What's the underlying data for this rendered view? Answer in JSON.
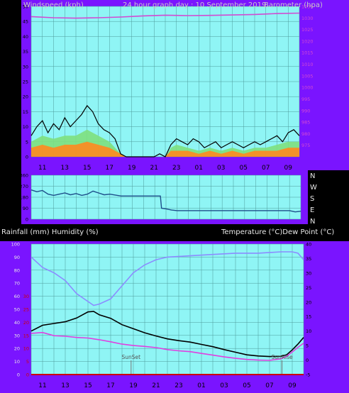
{
  "colors": {
    "panel": "#7a14ff",
    "plot": "#8ff5f5",
    "grid": "#4d9a9a",
    "axis_text": "#000000",
    "pressure": "#d24ad2",
    "gust": "#000000",
    "wind_mid": "#7ee07e",
    "wind_avg": "#ff8a1e",
    "direction": "#1e4e8a",
    "temperature": "#000000",
    "dew_point": "#e040e0",
    "humidity": "#8c8cff",
    "rain": "#cc0000",
    "header_text": "#c8c8c8",
    "label_text": "#e8e8e8",
    "sun_marker": "#7a7a7a"
  },
  "chart_data": [
    {
      "type": "line",
      "title": "24 hour graph day : 10 September 2019",
      "ylabel": "Windspeed (kph)",
      "y2label": "Barometer (hpa)",
      "x_tick_labels": [
        "11",
        "13",
        "15",
        "17",
        "19",
        "21",
        "23",
        "01",
        "03",
        "05",
        "07",
        "09"
      ],
      "ylim": [
        0,
        50
      ],
      "y_ticks": [
        "0",
        "5",
        "10",
        "15",
        "20",
        "25",
        "30",
        "35",
        "40",
        "45",
        "50"
      ],
      "y2lim": [
        970,
        1035
      ],
      "y2_ticks": [
        "975",
        "980",
        "985",
        "990",
        "995",
        "1000",
        "1005",
        "1010",
        "1015",
        "1020",
        "1025",
        "1030",
        "1035"
      ],
      "series": [
        {
          "key": "pressure",
          "axis": "y2",
          "x": [
            0,
            2,
            4,
            6,
            8,
            10,
            12,
            14,
            16,
            18,
            20,
            22,
            24
          ],
          "values": [
            1030.6,
            1030.1,
            1029.9,
            1030.1,
            1030.4,
            1030.9,
            1031.2,
            1031.0,
            1031.1,
            1031.3,
            1031.5,
            1031.9,
            1032.1
          ]
        },
        {
          "key": "gust",
          "axis": "y",
          "x": [
            0,
            0.5,
            1,
            1.5,
            2,
            2.5,
            3,
            3.5,
            4,
            4.5,
            5,
            5.5,
            6,
            6.5,
            7,
            7.5,
            8,
            8.5,
            9,
            9.5,
            10,
            10.5,
            11,
            11.5,
            12,
            12.5,
            13,
            13.5,
            14,
            14.5,
            15,
            15.5,
            16,
            16.5,
            17,
            17.5,
            18,
            18.5,
            19,
            19.5,
            20,
            20.5,
            21,
            21.5,
            22,
            22.5,
            23,
            23.5,
            24
          ],
          "values": [
            7,
            10,
            12,
            8,
            11,
            9,
            13,
            10,
            12,
            14,
            17,
            15,
            11,
            9,
            8,
            6,
            1,
            0,
            0,
            0,
            0,
            0,
            0,
            1,
            0,
            4,
            6,
            5,
            4,
            6,
            5,
            3,
            4,
            5,
            3,
            4,
            5,
            4,
            3,
            4,
            5,
            4,
            5,
            6,
            7,
            5,
            8,
            9,
            7
          ]
        },
        {
          "key": "wind_mid",
          "axis": "y",
          "x": [
            0,
            1,
            2,
            3,
            4,
            5,
            6,
            7,
            8,
            8.5,
            11,
            12,
            12.5,
            13,
            14,
            15,
            16,
            17,
            18,
            19,
            20,
            21,
            22,
            23,
            24
          ],
          "values": [
            5,
            7,
            6,
            7,
            7,
            9,
            7,
            5,
            1,
            0,
            0,
            0,
            3,
            4,
            3,
            2,
            3,
            2,
            3,
            2,
            3,
            3,
            4,
            5,
            5
          ]
        },
        {
          "key": "wind_avg",
          "axis": "y",
          "x": [
            0,
            1,
            2,
            3,
            4,
            5,
            6,
            7,
            8,
            8.5,
            11,
            12,
            12.5,
            13,
            14,
            15,
            16,
            17,
            18,
            19,
            20,
            21,
            22,
            23,
            24
          ],
          "values": [
            3,
            4,
            3,
            4,
            4,
            5,
            4,
            3,
            1,
            0,
            0,
            0,
            2,
            2,
            2,
            1,
            2,
            1,
            2,
            1,
            2,
            2,
            2,
            3,
            3
          ]
        }
      ]
    },
    {
      "type": "scatter",
      "ylim": [
        0,
        360
      ],
      "y_ticks": [
        "360",
        "270",
        "180",
        "90",
        "0"
      ],
      "y2_labels": [
        "N",
        "W",
        "S",
        "E",
        "N"
      ],
      "series": [
        {
          "key": "direction",
          "x": [
            0,
            0.5,
            1,
            1.5,
            2,
            2.5,
            3,
            3.5,
            4,
            4.5,
            5,
            5.5,
            6,
            6.5,
            7,
            8,
            9,
            10,
            11,
            11.5,
            11.6,
            12,
            12.5,
            13,
            14,
            15,
            16,
            17,
            18,
            19,
            20,
            21,
            22,
            23,
            23.5,
            24
          ],
          "values": [
            240,
            225,
            235,
            205,
            195,
            205,
            215,
            200,
            210,
            195,
            205,
            230,
            215,
            200,
            205,
            190,
            190,
            190,
            190,
            190,
            90,
            85,
            75,
            70,
            70,
            70,
            70,
            70,
            70,
            70,
            70,
            70,
            70,
            70,
            60,
            65
          ]
        }
      ]
    },
    {
      "type": "line",
      "ylabel": "Rainfall (mm)  Humidity (%)",
      "y2label": "Temperature (°C)Dew Point (°C)",
      "x_tick_labels": [
        "11",
        "13",
        "15",
        "17",
        "19",
        "21",
        "23",
        "01",
        "03",
        "05",
        "07",
        "09"
      ],
      "ylim": [
        0,
        100
      ],
      "y_ticks": [
        "0",
        "10",
        "20",
        "30",
        "40",
        "50",
        "60",
        "70",
        "80",
        "90",
        "100"
      ],
      "rain_ticks": [
        "0",
        "5",
        "10",
        "15",
        "20",
        "25",
        "30"
      ],
      "y2lim": [
        -5,
        40
      ],
      "y2_ticks": [
        "-5",
        "0",
        "5",
        "10",
        "15",
        "20",
        "25",
        "30",
        "35",
        "40"
      ],
      "annotations": [
        {
          "label": "SunSet",
          "x": 8.8
        },
        {
          "label": "SunRise",
          "x": 22.1
        }
      ],
      "series": [
        {
          "key": "humidity",
          "axis": "y",
          "x": [
            0,
            1,
            2,
            3,
            4,
            5,
            5.5,
            6,
            7,
            8,
            9,
            10,
            11,
            12,
            14,
            16,
            18,
            20,
            22,
            23,
            23.5,
            24
          ],
          "values": [
            90,
            82,
            78,
            72,
            62,
            56,
            53,
            54,
            58,
            68,
            78,
            84,
            88,
            90,
            91,
            92,
            93,
            93,
            94,
            94,
            93,
            88
          ]
        },
        {
          "key": "temperature",
          "axis": "y2",
          "x": [
            0,
            1,
            2,
            3,
            4,
            5,
            5.5,
            6,
            7,
            8,
            9,
            10,
            11,
            12,
            13,
            14,
            15,
            16,
            17,
            18,
            19,
            20,
            21,
            22,
            22.5,
            23,
            23.5,
            24
          ],
          "values": [
            10,
            12,
            12.6,
            13.2,
            14.5,
            16.6,
            16.8,
            15.6,
            14.4,
            12.2,
            10.8,
            9.4,
            8.3,
            7.3,
            6.7,
            6.2,
            5.4,
            4.6,
            3.6,
            2.7,
            1.8,
            1.4,
            1.2,
            1.3,
            1.8,
            3.5,
            5.5,
            7.8
          ]
        },
        {
          "key": "dew_point",
          "axis": "y2",
          "x": [
            0,
            1,
            2,
            3,
            4,
            5,
            6,
            7,
            8,
            9,
            10,
            11,
            12,
            13,
            14,
            15,
            16,
            17,
            18,
            19,
            20,
            21,
            22,
            22.5,
            23,
            23.5,
            24
          ],
          "values": [
            9.2,
            9.5,
            8.4,
            8.2,
            7.8,
            7.6,
            7.0,
            6.3,
            5.5,
            5.0,
            4.7,
            4.3,
            3.6,
            3.2,
            2.9,
            2.3,
            1.7,
            1.1,
            0.6,
            0.2,
            0,
            -0.1,
            0.4,
            1.3,
            2.8,
            4.4,
            5.8
          ]
        },
        {
          "key": "rain",
          "axis": "y",
          "x": [
            0,
            24
          ],
          "values": [
            0,
            0
          ]
        }
      ]
    }
  ],
  "rainfall_label": "Rainfall (mm)",
  "humidity_label": "Humidity (%)"
}
